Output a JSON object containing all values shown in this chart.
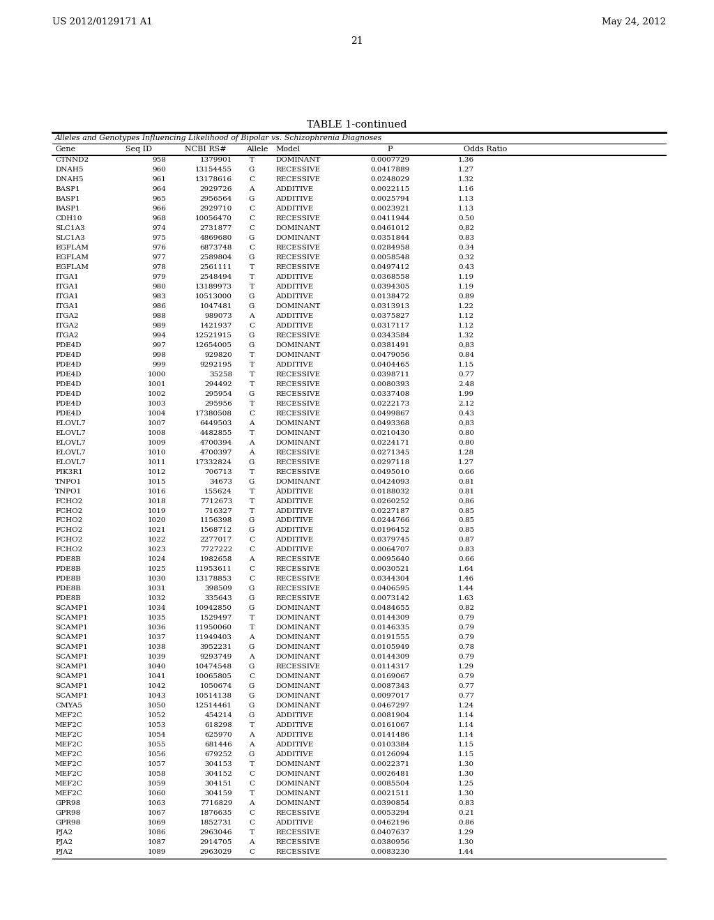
{
  "header_left": "US 2012/0129171 A1",
  "header_right": "May 24, 2012",
  "page_number": "21",
  "table_title": "TABLE 1-continued",
  "table_subtitle": "Alleles and Genotypes Influencing Likelihood of Bipolar vs. Schizophrenia Diagnoses",
  "columns": [
    "Gene",
    "Seq ID",
    "NCBI RS#",
    "Allele",
    "Model",
    "P",
    "Odds Ratio"
  ],
  "rows": [
    [
      "CTNND2",
      "958",
      "1379901",
      "T",
      "DOMINANT",
      "0.0007729",
      "1.36"
    ],
    [
      "DNAH5",
      "960",
      "13154455",
      "G",
      "RECESSIVE",
      "0.0417889",
      "1.27"
    ],
    [
      "DNAH5",
      "961",
      "13178616",
      "C",
      "RECESSIVE",
      "0.0248029",
      "1.32"
    ],
    [
      "BASP1",
      "964",
      "2929726",
      "A",
      "ADDITIVE",
      "0.0022115",
      "1.16"
    ],
    [
      "BASP1",
      "965",
      "2956564",
      "G",
      "ADDITIVE",
      "0.0025794",
      "1.13"
    ],
    [
      "BASP1",
      "966",
      "2929710",
      "C",
      "ADDITIVE",
      "0.0023921",
      "1.13"
    ],
    [
      "CDH10",
      "968",
      "10056470",
      "C",
      "RECESSIVE",
      "0.0411944",
      "0.50"
    ],
    [
      "SLC1A3",
      "974",
      "2731877",
      "C",
      "DOMINANT",
      "0.0461012",
      "0.82"
    ],
    [
      "SLC1A3",
      "975",
      "4869680",
      "G",
      "DOMINANT",
      "0.0351844",
      "0.83"
    ],
    [
      "EGFLAM",
      "976",
      "6873748",
      "C",
      "RECESSIVE",
      "0.0284958",
      "0.34"
    ],
    [
      "EGFLAM",
      "977",
      "2589804",
      "G",
      "RECESSIVE",
      "0.0058548",
      "0.32"
    ],
    [
      "EGFLAM",
      "978",
      "2561111",
      "T",
      "RECESSIVE",
      "0.0497412",
      "0.43"
    ],
    [
      "ITGA1",
      "979",
      "2548494",
      "T",
      "ADDITIVE",
      "0.0368558",
      "1.19"
    ],
    [
      "ITGA1",
      "980",
      "13189973",
      "T",
      "ADDITIVE",
      "0.0394305",
      "1.19"
    ],
    [
      "ITGA1",
      "983",
      "10513000",
      "G",
      "ADDITIVE",
      "0.0138472",
      "0.89"
    ],
    [
      "ITGA1",
      "986",
      "1047481",
      "G",
      "DOMINANT",
      "0.0313913",
      "1.22"
    ],
    [
      "ITGA2",
      "988",
      "989073",
      "A",
      "ADDITIVE",
      "0.0375827",
      "1.12"
    ],
    [
      "ITGA2",
      "989",
      "1421937",
      "C",
      "ADDITIVE",
      "0.0317117",
      "1.12"
    ],
    [
      "ITGA2",
      "994",
      "12521915",
      "G",
      "RECESSIVE",
      "0.0343584",
      "1.32"
    ],
    [
      "PDE4D",
      "997",
      "12654005",
      "G",
      "DOMINANT",
      "0.0381491",
      "0.83"
    ],
    [
      "PDE4D",
      "998",
      "929820",
      "T",
      "DOMINANT",
      "0.0479056",
      "0.84"
    ],
    [
      "PDE4D",
      "999",
      "9292195",
      "T",
      "ADDITIVE",
      "0.0404465",
      "1.15"
    ],
    [
      "PDE4D",
      "1000",
      "35258",
      "T",
      "RECESSIVE",
      "0.0398711",
      "0.77"
    ],
    [
      "PDE4D",
      "1001",
      "294492",
      "T",
      "RECESSIVE",
      "0.0080393",
      "2.48"
    ],
    [
      "PDE4D",
      "1002",
      "295954",
      "G",
      "RECESSIVE",
      "0.0337408",
      "1.99"
    ],
    [
      "PDE4D",
      "1003",
      "295956",
      "T",
      "RECESSIVE",
      "0.0222173",
      "2.12"
    ],
    [
      "PDE4D",
      "1004",
      "17380508",
      "C",
      "RECESSIVE",
      "0.0499867",
      "0.43"
    ],
    [
      "ELOVL7",
      "1007",
      "6449503",
      "A",
      "DOMINANT",
      "0.0493368",
      "0.83"
    ],
    [
      "ELOVL7",
      "1008",
      "4482855",
      "T",
      "DOMINANT",
      "0.0210430",
      "0.80"
    ],
    [
      "ELOVL7",
      "1009",
      "4700394",
      "A",
      "DOMINANT",
      "0.0224171",
      "0.80"
    ],
    [
      "ELOVL7",
      "1010",
      "4700397",
      "A",
      "RECESSIVE",
      "0.0271345",
      "1.28"
    ],
    [
      "ELOVL7",
      "1011",
      "17332824",
      "G",
      "RECESSIVE",
      "0.0297118",
      "1.27"
    ],
    [
      "PIK3R1",
      "1012",
      "706713",
      "T",
      "RECESSIVE",
      "0.0495010",
      "0.66"
    ],
    [
      "TNPO1",
      "1015",
      "34673",
      "G",
      "DOMINANT",
      "0.0424093",
      "0.81"
    ],
    [
      "TNPO1",
      "1016",
      "155624",
      "T",
      "ADDITIVE",
      "0.0188032",
      "0.81"
    ],
    [
      "FCHO2",
      "1018",
      "7712673",
      "T",
      "ADDITIVE",
      "0.0260252",
      "0.86"
    ],
    [
      "FCHO2",
      "1019",
      "716327",
      "T",
      "ADDITIVE",
      "0.0227187",
      "0.85"
    ],
    [
      "FCHO2",
      "1020",
      "1156398",
      "G",
      "ADDITIVE",
      "0.0244766",
      "0.85"
    ],
    [
      "FCHO2",
      "1021",
      "1568712",
      "G",
      "ADDITIVE",
      "0.0196452",
      "0.85"
    ],
    [
      "FCHO2",
      "1022",
      "2277017",
      "C",
      "ADDITIVE",
      "0.0379745",
      "0.87"
    ],
    [
      "FCHO2",
      "1023",
      "7727222",
      "C",
      "ADDITIVE",
      "0.0064707",
      "0.83"
    ],
    [
      "PDE8B",
      "1024",
      "1982658",
      "A",
      "RECESSIVE",
      "0.0095640",
      "0.66"
    ],
    [
      "PDE8B",
      "1025",
      "11953611",
      "C",
      "RECESSIVE",
      "0.0030521",
      "1.64"
    ],
    [
      "PDE8B",
      "1030",
      "13178853",
      "C",
      "RECESSIVE",
      "0.0344304",
      "1.46"
    ],
    [
      "PDE8B",
      "1031",
      "398509",
      "G",
      "RECESSIVE",
      "0.0406595",
      "1.44"
    ],
    [
      "PDE8B",
      "1032",
      "335643",
      "G",
      "RECESSIVE",
      "0.0073142",
      "1.63"
    ],
    [
      "SCAMP1",
      "1034",
      "10942850",
      "G",
      "DOMINANT",
      "0.0484655",
      "0.82"
    ],
    [
      "SCAMP1",
      "1035",
      "1529497",
      "T",
      "DOMINANT",
      "0.0144309",
      "0.79"
    ],
    [
      "SCAMP1",
      "1036",
      "11950060",
      "T",
      "DOMINANT",
      "0.0146335",
      "0.79"
    ],
    [
      "SCAMP1",
      "1037",
      "11949403",
      "A",
      "DOMINANT",
      "0.0191555",
      "0.79"
    ],
    [
      "SCAMP1",
      "1038",
      "3952231",
      "G",
      "DOMINANT",
      "0.0105949",
      "0.78"
    ],
    [
      "SCAMP1",
      "1039",
      "9293749",
      "A",
      "DOMINANT",
      "0.0144309",
      "0.79"
    ],
    [
      "SCAMP1",
      "1040",
      "10474548",
      "G",
      "RECESSIVE",
      "0.0114317",
      "1.29"
    ],
    [
      "SCAMP1",
      "1041",
      "10065805",
      "C",
      "DOMINANT",
      "0.0169067",
      "0.79"
    ],
    [
      "SCAMP1",
      "1042",
      "1050674",
      "G",
      "DOMINANT",
      "0.0087343",
      "0.77"
    ],
    [
      "SCAMP1",
      "1043",
      "10514138",
      "G",
      "DOMINANT",
      "0.0097017",
      "0.77"
    ],
    [
      "CMYA5",
      "1050",
      "12514461",
      "G",
      "DOMINANT",
      "0.0467297",
      "1.24"
    ],
    [
      "MEF2C",
      "1052",
      "454214",
      "G",
      "ADDITIVE",
      "0.0081904",
      "1.14"
    ],
    [
      "MEF2C",
      "1053",
      "618298",
      "T",
      "ADDITIVE",
      "0.0161067",
      "1.14"
    ],
    [
      "MEF2C",
      "1054",
      "625970",
      "A",
      "ADDITIVE",
      "0.0141486",
      "1.14"
    ],
    [
      "MEF2C",
      "1055",
      "681446",
      "A",
      "ADDITIVE",
      "0.0103384",
      "1.15"
    ],
    [
      "MEF2C",
      "1056",
      "679252",
      "G",
      "ADDITIVE",
      "0.0126094",
      "1.15"
    ],
    [
      "MEF2C",
      "1057",
      "304153",
      "T",
      "DOMINANT",
      "0.0022371",
      "1.30"
    ],
    [
      "MEF2C",
      "1058",
      "304152",
      "C",
      "DOMINANT",
      "0.0026481",
      "1.30"
    ],
    [
      "MEF2C",
      "1059",
      "304151",
      "C",
      "DOMINANT",
      "0.0085504",
      "1.25"
    ],
    [
      "MEF2C",
      "1060",
      "304159",
      "T",
      "DOMINANT",
      "0.0021511",
      "1.30"
    ],
    [
      "GPR98",
      "1063",
      "7716829",
      "A",
      "DOMINANT",
      "0.0390854",
      "0.83"
    ],
    [
      "GPR98",
      "1067",
      "1876635",
      "C",
      "RECESSIVE",
      "0.0053294",
      "0.21"
    ],
    [
      "GPR98",
      "1069",
      "1852731",
      "C",
      "ADDITIVE",
      "0.0462196",
      "0.86"
    ],
    [
      "PJA2",
      "1086",
      "2963046",
      "T",
      "RECESSIVE",
      "0.0407637",
      "1.29"
    ],
    [
      "PJA2",
      "1087",
      "2914705",
      "A",
      "RECESSIVE",
      "0.0380956",
      "1.30"
    ],
    [
      "PJA2",
      "1089",
      "2963029",
      "C",
      "RECESSIVE",
      "0.0083230",
      "1.44"
    ]
  ],
  "bg_color": "#ffffff",
  "text_color": "#000000",
  "line_color": "#000000"
}
